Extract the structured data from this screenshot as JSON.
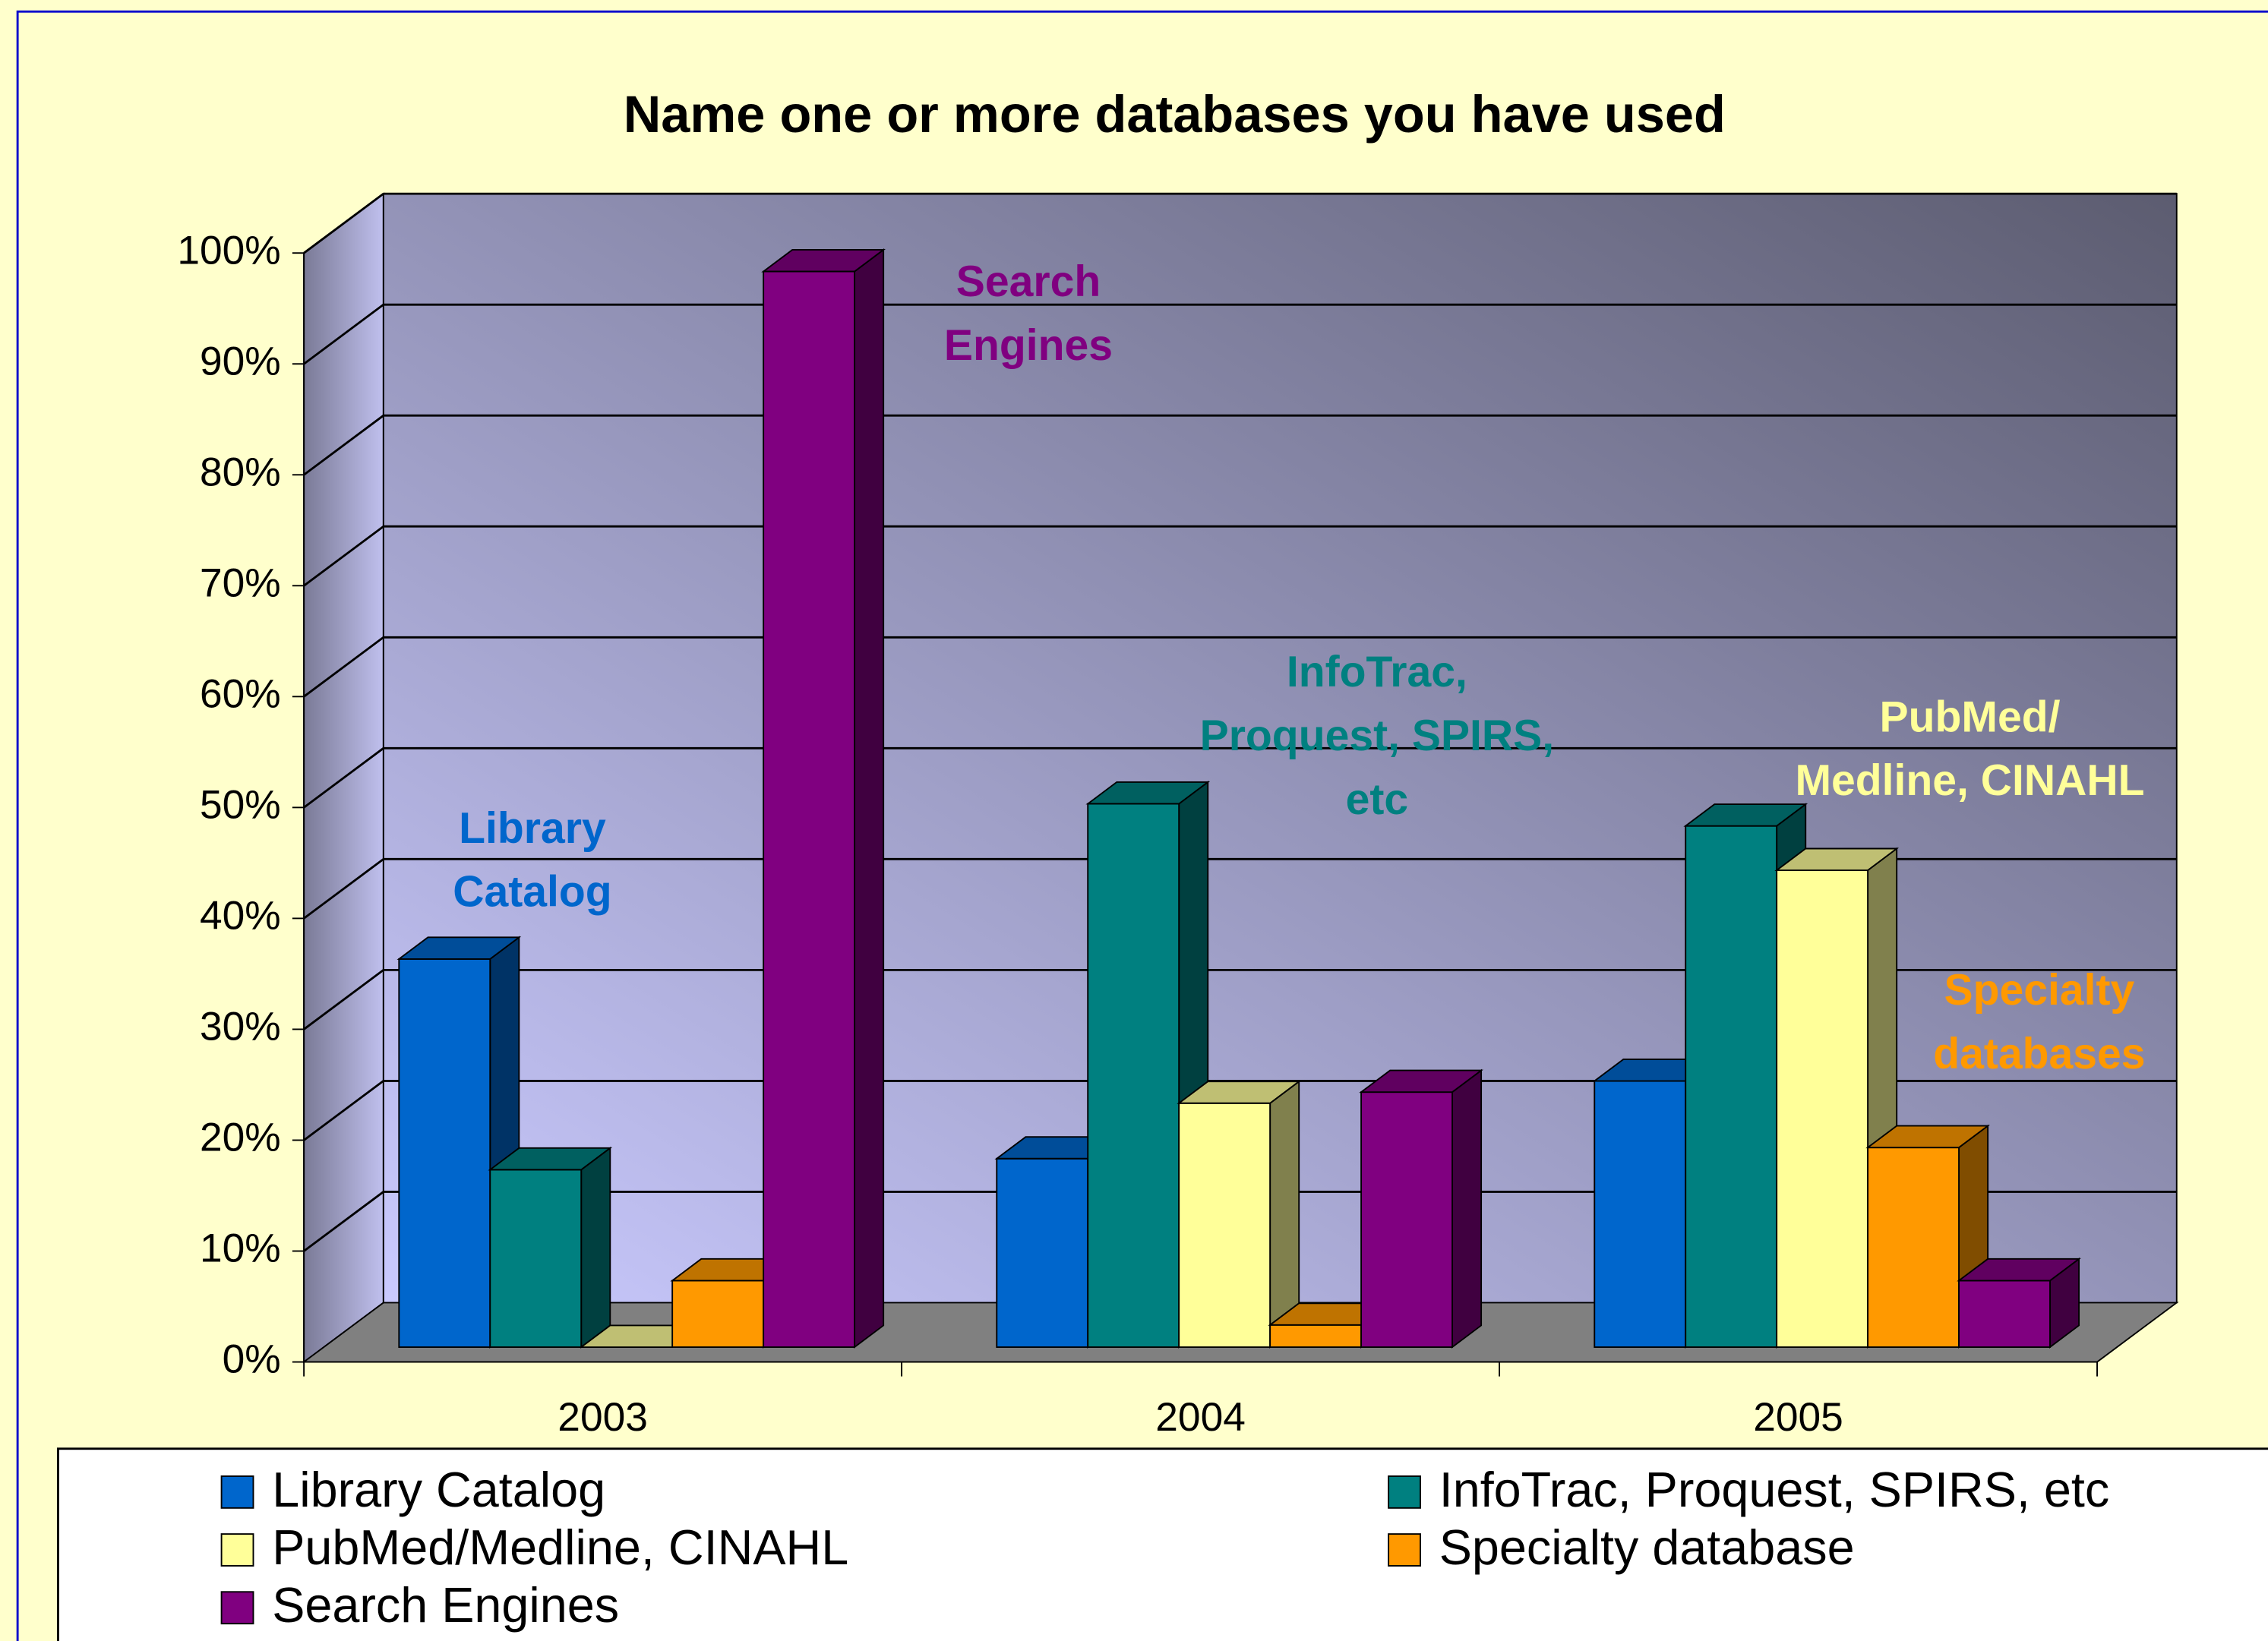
{
  "chart_data": {
    "type": "bar3d",
    "title": "Name one or more databases you have used",
    "categories": [
      "2003",
      "2004",
      "2005"
    ],
    "series": [
      {
        "name": "Library Catalog",
        "color": "#0066cc",
        "values": [
          35,
          17,
          24
        ]
      },
      {
        "name": "InfoTrac, Proquest, SPIRS, etc",
        "color": "#008080",
        "values": [
          16,
          49,
          47
        ]
      },
      {
        "name": "PubMed/Medline, CINAHL",
        "color": "#ffff99",
        "values": [
          0,
          22,
          43
        ]
      },
      {
        "name": "Specialty database",
        "color": "#ff9900",
        "values": [
          6,
          2,
          18
        ]
      },
      {
        "name": "Search Engines",
        "color": "#800080",
        "values": [
          97,
          23,
          6
        ]
      }
    ],
    "ylim": [
      0,
      100
    ],
    "yticks": [
      {
        "value": 0,
        "label": "0%"
      },
      {
        "value": 10,
        "label": "10%"
      },
      {
        "value": 20,
        "label": "20%"
      },
      {
        "value": 30,
        "label": "30%"
      },
      {
        "value": 40,
        "label": "40%"
      },
      {
        "value": 50,
        "label": "50%"
      },
      {
        "value": 60,
        "label": "60%"
      },
      {
        "value": 70,
        "label": "70%"
      },
      {
        "value": 80,
        "label": "80%"
      },
      {
        "value": 90,
        "label": "90%"
      },
      {
        "value": 100,
        "label": "100%"
      }
    ],
    "grid": true,
    "annotations": [
      {
        "lines": [
          "Library",
          "Catalog"
        ],
        "color": "#0066cc"
      },
      {
        "lines": [
          "Search",
          "Engines"
        ],
        "color": "#800080"
      },
      {
        "lines": [
          "InfoTrac,",
          "Proquest, SPIRS,",
          "etc"
        ],
        "color": "#008080"
      },
      {
        "lines": [
          "PubMed/",
          "Medline, CINAHL"
        ],
        "color": "#ffff99"
      },
      {
        "lines": [
          "Specialty",
          "databases"
        ],
        "color": "#ff9900"
      }
    ]
  }
}
